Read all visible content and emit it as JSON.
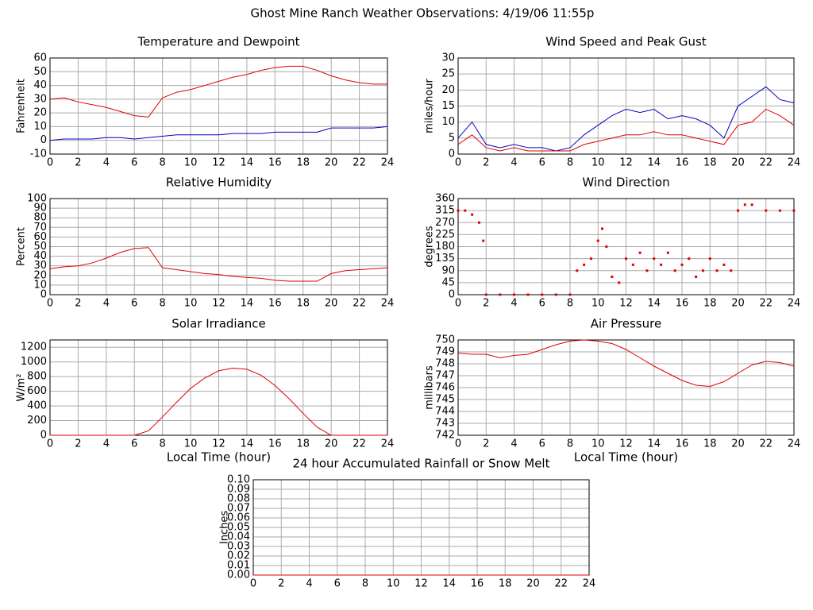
{
  "title": "Ghost Mine Ranch Weather Observations: 4/19/06 11:55p",
  "chart_data": [
    {
      "type": "line",
      "title": "Temperature and Dewpoint",
      "ylabel": "Fahrenheit",
      "x": [
        0,
        1,
        2,
        3,
        4,
        5,
        6,
        7,
        8,
        9,
        10,
        11,
        12,
        13,
        14,
        15,
        16,
        17,
        18,
        19,
        20,
        21,
        22,
        23,
        24
      ],
      "series": [
        {
          "color": "#e00000",
          "values": [
            30,
            31,
            28,
            26,
            24,
            21,
            18,
            17,
            31,
            35,
            37,
            40,
            43,
            46,
            48,
            51,
            53,
            54,
            54,
            51,
            47,
            44,
            42,
            41,
            41
          ]
        },
        {
          "color": "#0000c0",
          "values": [
            0,
            1,
            1,
            1,
            2,
            2,
            1,
            2,
            3,
            4,
            4,
            4,
            4,
            5,
            5,
            5,
            6,
            6,
            6,
            6,
            9,
            9,
            9,
            9,
            10
          ]
        }
      ],
      "xlim": [
        0,
        24
      ],
      "xticks": [
        0,
        2,
        4,
        6,
        8,
        10,
        12,
        14,
        16,
        18,
        20,
        22,
        24
      ],
      "ylim": [
        -10,
        60
      ],
      "yticks": [
        -10,
        0,
        10,
        20,
        30,
        40,
        50,
        60
      ],
      "grid": true
    },
    {
      "type": "line",
      "title": "Wind Speed and Peak Gust",
      "ylabel": "miles/hour",
      "x": [
        0,
        1,
        2,
        3,
        4,
        5,
        6,
        7,
        8,
        9,
        10,
        11,
        12,
        13,
        14,
        15,
        16,
        17,
        18,
        19,
        20,
        21,
        22,
        23,
        24
      ],
      "series": [
        {
          "color": "#0000c0",
          "values": [
            5,
            10,
            3,
            2,
            3,
            2,
            2,
            1,
            2,
            6,
            9,
            12,
            14,
            13,
            14,
            11,
            12,
            11,
            9,
            5,
            15,
            18,
            21,
            17,
            16
          ]
        },
        {
          "color": "#e00000",
          "values": [
            3,
            6,
            2,
            1,
            2,
            1,
            1,
            1,
            1,
            3,
            4,
            5,
            6,
            6,
            7,
            6,
            6,
            5,
            4,
            3,
            9,
            10,
            14,
            12,
            9
          ]
        }
      ],
      "xlim": [
        0,
        24
      ],
      "xticks": [
        0,
        2,
        4,
        6,
        8,
        10,
        12,
        14,
        16,
        18,
        20,
        22,
        24
      ],
      "ylim": [
        0,
        30
      ],
      "yticks": [
        0,
        5,
        10,
        15,
        20,
        25,
        30
      ],
      "grid": true
    },
    {
      "type": "line",
      "title": "Relative Humidity",
      "ylabel": "Percent",
      "x": [
        0,
        1,
        2,
        3,
        4,
        5,
        6,
        7,
        8,
        9,
        10,
        11,
        12,
        13,
        14,
        15,
        16,
        17,
        18,
        19,
        20,
        21,
        22,
        23,
        24
      ],
      "series": [
        {
          "color": "#e00000",
          "values": [
            27,
            29,
            30,
            33,
            38,
            44,
            48,
            49,
            28,
            26,
            24,
            22,
            21,
            19,
            18,
            17,
            15,
            14,
            14,
            14,
            22,
            25,
            26,
            27,
            28
          ]
        }
      ],
      "xlim": [
        0,
        24
      ],
      "xticks": [
        0,
        2,
        4,
        6,
        8,
        10,
        12,
        14,
        16,
        18,
        20,
        22,
        24
      ],
      "ylim": [
        0,
        100
      ],
      "yticks": [
        0,
        10,
        20,
        30,
        40,
        50,
        60,
        70,
        80,
        90,
        100
      ],
      "grid": true
    },
    {
      "type": "scatter",
      "title": "Wind Direction",
      "ylabel": "degrees",
      "color": "#e00000",
      "x": [
        0,
        0.5,
        1,
        1.5,
        1.8,
        2,
        3,
        4,
        5,
        6,
        7,
        8,
        8.5,
        9,
        9.5,
        10,
        10.3,
        10.6,
        11,
        11.5,
        12,
        12.5,
        13,
        13.5,
        14,
        14.5,
        15,
        15.5,
        16,
        16.5,
        17,
        17.5,
        18,
        18.5,
        19,
        19.5,
        20,
        20.5,
        21,
        22,
        23,
        24
      ],
      "values": [
        315,
        315,
        300,
        270,
        202,
        0,
        0,
        0,
        0,
        0,
        0,
        0,
        90,
        112,
        135,
        202,
        247,
        180,
        67,
        45,
        135,
        112,
        157,
        90,
        135,
        112,
        157,
        90,
        112,
        135,
        67,
        90,
        135,
        90,
        112,
        90,
        315,
        337,
        337,
        315,
        315,
        315
      ],
      "xlim": [
        0,
        24
      ],
      "xticks": [
        0,
        2,
        4,
        6,
        8,
        10,
        12,
        14,
        16,
        18,
        20,
        22,
        24
      ],
      "ylim": [
        0,
        360
      ],
      "yticks": [
        0,
        45,
        90,
        135,
        180,
        225,
        270,
        315,
        360
      ],
      "grid": true
    },
    {
      "type": "line",
      "title": "Solar Irradiance",
      "ylabel": "W/m²",
      "xlabel": "Local Time (hour)",
      "x": [
        0,
        1,
        2,
        3,
        4,
        5,
        6,
        7,
        8,
        9,
        10,
        11,
        12,
        13,
        14,
        15,
        16,
        17,
        18,
        19,
        20,
        21,
        22,
        23,
        24
      ],
      "series": [
        {
          "color": "#e00000",
          "values": [
            0,
            0,
            0,
            0,
            0,
            0,
            0,
            60,
            250,
            450,
            640,
            780,
            880,
            915,
            900,
            820,
            680,
            500,
            300,
            110,
            0,
            0,
            0,
            0,
            0
          ]
        }
      ],
      "xlim": [
        0,
        24
      ],
      "xticks": [
        0,
        2,
        4,
        6,
        8,
        10,
        12,
        14,
        16,
        18,
        20,
        22,
        24
      ],
      "ylim": [
        0,
        1300
      ],
      "yticks": [
        0,
        200,
        400,
        600,
        800,
        1000,
        1200
      ],
      "grid": true
    },
    {
      "type": "line",
      "title": "Air Pressure",
      "ylabel": "millibars",
      "xlabel": "Local Time (hour)",
      "x": [
        0,
        1,
        2,
        3,
        4,
        5,
        6,
        7,
        8,
        9,
        10,
        11,
        12,
        13,
        14,
        15,
        16,
        17,
        18,
        19,
        20,
        21,
        22,
        23,
        24
      ],
      "series": [
        {
          "color": "#e00000",
          "values": [
            748.9,
            748.8,
            748.8,
            748.5,
            748.7,
            748.8,
            749.2,
            749.6,
            749.9,
            750,
            749.9,
            749.7,
            749.2,
            748.5,
            747.8,
            747.2,
            746.6,
            746.2,
            746.1,
            746.5,
            747.2,
            747.9,
            748.2,
            748.1,
            747.8
          ]
        }
      ],
      "xlim": [
        0,
        24
      ],
      "xticks": [
        0,
        2,
        4,
        6,
        8,
        10,
        12,
        14,
        16,
        18,
        20,
        22,
        24
      ],
      "ylim": [
        742,
        750
      ],
      "yticks": [
        742,
        743,
        744,
        745,
        746,
        747,
        748,
        749,
        750
      ],
      "grid": true
    },
    {
      "type": "line",
      "title": "24 hour Accumulated Rainfall or Snow Melt",
      "ylabel": "Inches",
      "x": [
        0,
        24
      ],
      "series": [
        {
          "color": "#e00000",
          "values": [
            0,
            0
          ]
        }
      ],
      "xlim": [
        0,
        24
      ],
      "xticks": [
        0,
        2,
        4,
        6,
        8,
        10,
        12,
        14,
        16,
        18,
        20,
        22,
        24
      ],
      "ylim": [
        0,
        0.1
      ],
      "yticks": [
        {
          "value": 0,
          "label": "0.00"
        },
        {
          "value": 0.01,
          "label": "0.01"
        },
        {
          "value": 0.02,
          "label": "0.02"
        },
        {
          "value": 0.03,
          "label": "0.03"
        },
        {
          "value": 0.04,
          "label": "0.04"
        },
        {
          "value": 0.05,
          "label": "0.05"
        },
        {
          "value": 0.06,
          "label": "0.06"
        },
        {
          "value": 0.07,
          "label": "0.07"
        },
        {
          "value": 0.08,
          "label": "0.08"
        },
        {
          "value": 0.09,
          "label": "0.09"
        },
        {
          "value": 0.1,
          "label": "0.10"
        }
      ],
      "grid": true
    }
  ]
}
